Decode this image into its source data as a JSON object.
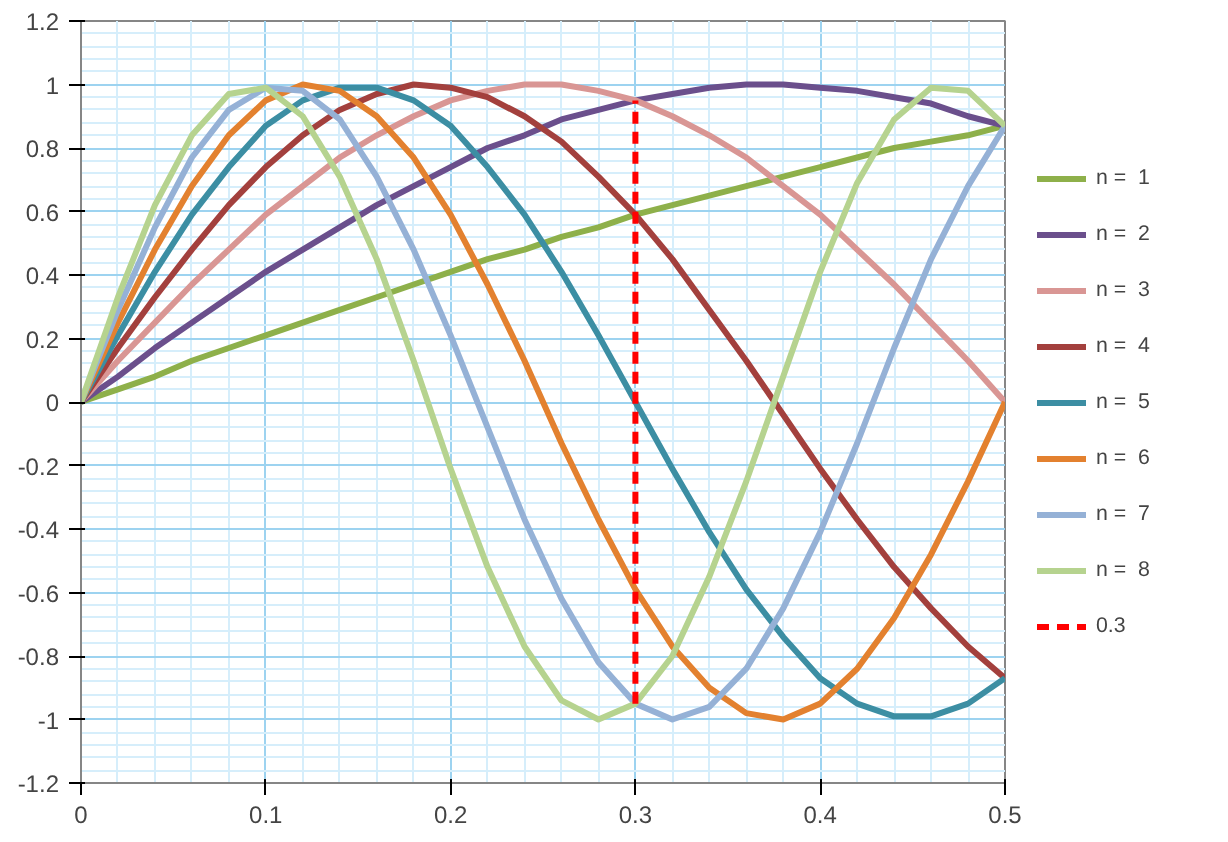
{
  "chart_data": {
    "type": "line",
    "x": [
      0,
      0.02,
      0.04,
      0.06,
      0.08,
      0.1,
      0.12,
      0.14,
      0.16,
      0.18,
      0.2,
      0.22,
      0.24,
      0.26,
      0.28,
      0.3,
      0.32,
      0.34,
      0.36,
      0.38,
      0.4,
      0.42,
      0.44,
      0.46,
      0.48,
      0.5
    ],
    "xlim": [
      0,
      0.5
    ],
    "ylim": [
      -1.2,
      1.2
    ],
    "xticks": [
      {
        "value": 0,
        "label": "0"
      },
      {
        "value": 0.1,
        "label": "0.1"
      },
      {
        "value": 0.2,
        "label": "0.2"
      },
      {
        "value": 0.3,
        "label": "0.3"
      },
      {
        "value": 0.4,
        "label": "0.4"
      },
      {
        "value": 0.5,
        "label": "0.5"
      }
    ],
    "yticks": [
      {
        "value": -1.2,
        "label": "-1.2"
      },
      {
        "value": -1,
        "label": "-1"
      },
      {
        "value": -0.8,
        "label": "-0.8"
      },
      {
        "value": -0.6,
        "label": "-0.6"
      },
      {
        "value": -0.4,
        "label": "-0.4"
      },
      {
        "value": -0.2,
        "label": "-0.2"
      },
      {
        "value": 0,
        "label": "0"
      },
      {
        "value": 0.2,
        "label": "0.2"
      },
      {
        "value": 0.4,
        "label": "0.4"
      },
      {
        "value": 0.6,
        "label": "0.6"
      },
      {
        "value": 0.8,
        "label": "0.8"
      },
      {
        "value": 1,
        "label": "1"
      },
      {
        "value": 1.2,
        "label": "1.2"
      }
    ],
    "grid": true,
    "legend": "right",
    "marker": "none",
    "line_style": "solid",
    "series": [
      {
        "name": "n =  1",
        "color": "#8eb04a",
        "values": [
          0,
          0.04,
          0.08,
          0.13,
          0.17,
          0.21,
          0.25,
          0.29,
          0.33,
          0.37,
          0.41,
          0.45,
          0.48,
          0.52,
          0.55,
          0.59,
          0.62,
          0.65,
          0.68,
          0.71,
          0.74,
          0.77,
          0.8,
          0.82,
          0.84,
          0.87
        ]
      },
      {
        "name": "n =  2",
        "color": "#6b4f8c",
        "values": [
          0,
          0.08,
          0.17,
          0.25,
          0.33,
          0.41,
          0.48,
          0.55,
          0.62,
          0.68,
          0.74,
          0.8,
          0.84,
          0.89,
          0.92,
          0.95,
          0.97,
          0.99,
          1,
          1,
          0.99,
          0.98,
          0.96,
          0.94,
          0.9,
          0.87
        ]
      },
      {
        "name": "n =  3",
        "color": "#d99694",
        "values": [
          0,
          0.13,
          0.25,
          0.37,
          0.48,
          0.59,
          0.68,
          0.77,
          0.84,
          0.9,
          0.95,
          0.98,
          1,
          1,
          0.98,
          0.95,
          0.9,
          0.84,
          0.77,
          0.68,
          0.59,
          0.48,
          0.37,
          0.25,
          0.13,
          0
        ]
      },
      {
        "name": "n =  4",
        "color": "#a3403d",
        "values": [
          0,
          0.17,
          0.33,
          0.48,
          0.62,
          0.74,
          0.84,
          0.92,
          0.97,
          1,
          0.99,
          0.96,
          0.9,
          0.82,
          0.71,
          0.59,
          0.45,
          0.29,
          0.13,
          -0.04,
          -0.21,
          -0.37,
          -0.52,
          -0.65,
          -0.77,
          -0.87
        ]
      },
      {
        "name": "n =  5",
        "color": "#3c8ea3",
        "values": [
          0,
          0.21,
          0.41,
          0.59,
          0.74,
          0.87,
          0.95,
          0.99,
          0.99,
          0.95,
          0.87,
          0.74,
          0.59,
          0.41,
          0.21,
          0,
          -0.21,
          -0.41,
          -0.59,
          -0.74,
          -0.87,
          -0.95,
          -0.99,
          -0.99,
          -0.95,
          -0.87
        ]
      },
      {
        "name": "n =  6",
        "color": "#e3812f",
        "values": [
          0,
          0.25,
          0.48,
          0.68,
          0.84,
          0.95,
          1,
          0.98,
          0.9,
          0.77,
          0.59,
          0.37,
          0.13,
          -0.13,
          -0.37,
          -0.59,
          -0.77,
          -0.9,
          -0.98,
          -1,
          -0.95,
          -0.84,
          -0.68,
          -0.48,
          -0.25,
          0
        ]
      },
      {
        "name": "n =  7",
        "color": "#95b1d6",
        "values": [
          0,
          0.29,
          0.55,
          0.77,
          0.92,
          0.99,
          0.98,
          0.89,
          0.71,
          0.48,
          0.21,
          -0.08,
          -0.37,
          -0.62,
          -0.82,
          -0.95,
          -1,
          -0.96,
          -0.84,
          -0.65,
          -0.41,
          -0.13,
          0.17,
          0.45,
          0.68,
          0.87
        ]
      },
      {
        "name": "n =  8",
        "color": "#b6d38f",
        "values": [
          0,
          0.33,
          0.62,
          0.84,
          0.97,
          0.99,
          0.9,
          0.71,
          0.45,
          0.13,
          -0.21,
          -0.52,
          -0.77,
          -0.94,
          -1,
          -0.95,
          -0.8,
          -0.55,
          -0.25,
          0.08,
          0.41,
          0.69,
          0.89,
          0.99,
          0.98,
          0.87
        ]
      },
      {
        "name": "0.3",
        "color": "#ff0000",
        "x": [
          0.3,
          0.3
        ],
        "values": [
          -0.95,
          0.95
        ],
        "line_style": "dashed"
      }
    ]
  }
}
